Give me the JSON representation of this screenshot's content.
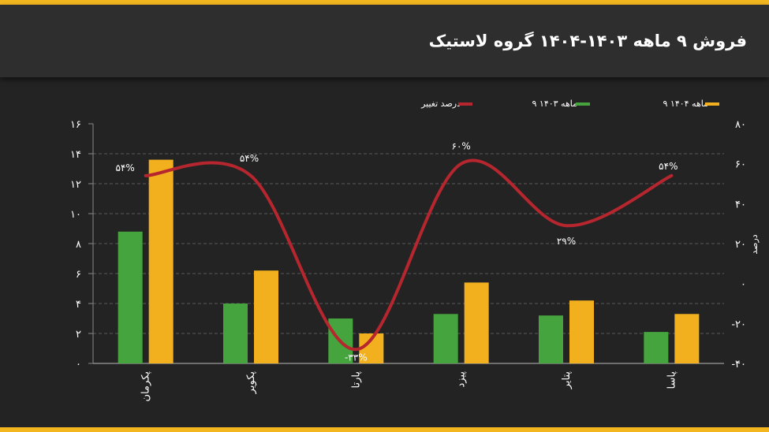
{
  "title": "فروش ۹ ماهه ۱۴۰۳-۱۴۰۴ گروه لاستیک",
  "colors": {
    "accent": "#f3b61f",
    "series_1404": "#f2b01e",
    "series_1403": "#46a43f",
    "change_line": "#b5262e",
    "background": "#232323",
    "header": "#2f2e2e",
    "grid": "#5a5a5a"
  },
  "chart_data": {
    "type": "bar",
    "categories": [
      "پکرمان",
      "پکویر",
      "پارتا",
      "پیزد",
      "پتایر",
      "پاسا"
    ],
    "series": [
      {
        "name": "۹ ماهه ۱۴۰۳",
        "values": [
          8.8,
          4.0,
          3.0,
          3.3,
          3.2,
          2.1
        ]
      },
      {
        "name": "۹ ماهه ۱۴۰۴",
        "values": [
          13.6,
          6.2,
          2.0,
          5.4,
          4.2,
          3.3
        ]
      }
    ],
    "line_series": {
      "name": "درصد تغییر",
      "axis": "right",
      "values": [
        54,
        54,
        -33,
        60,
        29,
        54
      ],
      "labels": [
        "۵۴%",
        "۵۴%",
        "-۳۳%",
        "۶۰%",
        "۲۹%",
        "۵۴%"
      ]
    },
    "left_axis": {
      "ylim": [
        0,
        16
      ],
      "ticks": [
        0,
        2,
        4,
        6,
        8,
        10,
        12,
        14,
        16
      ],
      "tick_labels": [
        "۰",
        "۲",
        "۴",
        "۶",
        "۸",
        "۱۰",
        "۱۲",
        "۱۴",
        "۱۶"
      ]
    },
    "right_axis": {
      "ylabel": "درصد",
      "ylim": [
        -40,
        80
      ],
      "ticks": [
        -40,
        -20,
        0,
        20,
        40,
        60,
        80
      ],
      "tick_labels": [
        "-۴۰",
        "-۲۰",
        "۰",
        "۲۰",
        "۴۰",
        "۶۰",
        "۸۰"
      ]
    },
    "legend": {
      "position": "top",
      "items": [
        {
          "label": "۹ ماهه ۱۴۰۴",
          "color": "#f2b01e"
        },
        {
          "label": "۹ ماهه ۱۴۰۳",
          "color": "#46a43f"
        },
        {
          "label": "درصد تغییر",
          "color": "#b5262e"
        }
      ]
    },
    "grid": true
  }
}
